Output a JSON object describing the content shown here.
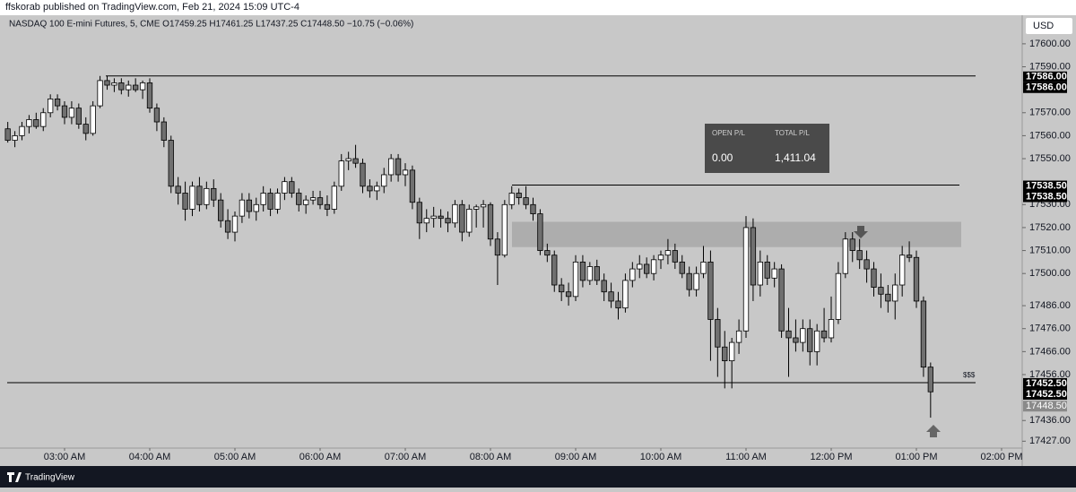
{
  "header": {
    "published": "ffskorab published on TradingView.com, Feb 21, 2024 15:09 UTC-4",
    "currency": "USD",
    "brand": "TradingView"
  },
  "chart_data": {
    "type": "candlestick",
    "title": "NASDAQ 100 E-mini Futures, 5, CME  O17459.25  H17461.25  L17437.25  C17448.50  −10.75 (−0.06%)",
    "x": [
      "02:20 AM",
      "02:25 AM",
      "02:30 AM",
      "02:35 AM",
      "02:40 AM",
      "02:45 AM",
      "02:50 AM",
      "02:55 AM",
      "03:00 AM",
      "03:05 AM",
      "03:10 AM",
      "03:15 AM",
      "03:20 AM",
      "03:25 AM",
      "03:30 AM",
      "03:35 AM",
      "03:40 AM",
      "03:45 AM",
      "03:50 AM",
      "03:55 AM",
      "04:00 AM",
      "04:05 AM",
      "04:10 AM",
      "04:15 AM",
      "04:20 AM",
      "04:25 AM",
      "04:30 AM",
      "04:35 AM",
      "04:40 AM",
      "04:45 AM",
      "04:50 AM",
      "04:55 AM",
      "05:00 AM",
      "05:05 AM",
      "05:10 AM",
      "05:15 AM",
      "05:20 AM",
      "05:25 AM",
      "05:30 AM",
      "05:35 AM",
      "05:40 AM",
      "05:45 AM",
      "05:50 AM",
      "05:55 AM",
      "06:00 AM",
      "06:05 AM",
      "06:10 AM",
      "06:15 AM",
      "06:20 AM",
      "06:25 AM",
      "06:30 AM",
      "06:35 AM",
      "06:40 AM",
      "06:45 AM",
      "06:50 AM",
      "06:55 AM",
      "07:00 AM",
      "07:05 AM",
      "07:10 AM",
      "07:15 AM",
      "07:20 AM",
      "07:25 AM",
      "07:30 AM",
      "07:35 AM",
      "07:40 AM",
      "07:45 AM",
      "07:50 AM",
      "07:55 AM",
      "08:00 AM",
      "08:05 AM",
      "08:10 AM",
      "08:15 AM",
      "08:20 AM",
      "08:25 AM",
      "08:30 AM",
      "08:35 AM",
      "08:40 AM",
      "08:45 AM",
      "08:50 AM",
      "08:55 AM",
      "09:00 AM",
      "09:05 AM",
      "09:10 AM",
      "09:15 AM",
      "09:20 AM",
      "09:25 AM",
      "09:30 AM",
      "09:35 AM",
      "09:40 AM",
      "09:45 AM",
      "09:50 AM",
      "09:55 AM",
      "10:00 AM",
      "10:05 AM",
      "10:10 AM",
      "10:15 AM",
      "10:20 AM",
      "10:25 AM",
      "10:30 AM",
      "10:35 AM",
      "10:40 AM",
      "10:45 AM",
      "10:50 AM",
      "10:55 AM",
      "11:00 AM",
      "11:05 AM",
      "11:10 AM",
      "11:15 AM",
      "11:20 AM",
      "11:25 AM",
      "11:30 AM",
      "11:35 AM",
      "11:40 AM",
      "11:45 AM",
      "11:50 AM",
      "11:55 AM",
      "12:00 PM",
      "12:05 PM",
      "12:10 PM",
      "12:15 PM",
      "12:20 PM",
      "12:25 PM",
      "12:30 PM",
      "12:35 PM",
      "12:40 PM",
      "12:45 PM",
      "12:50 PM",
      "12:55 PM",
      "01:00 PM",
      "01:05 PM",
      "01:10 PM"
    ],
    "open": [
      17563,
      17558,
      17560,
      17564,
      17567,
      17564,
      17570,
      17576,
      17573,
      17568,
      17572,
      17565,
      17561,
      17573,
      17584,
      17582,
      17583,
      17580,
      17582,
      17580,
      17583,
      17572,
      17566,
      17558,
      17538,
      17535,
      17528,
      17538,
      17530,
      17537,
      17532,
      17523,
      17518,
      17525,
      17532,
      17527,
      17530,
      17535,
      17528,
      17535,
      17540,
      17535,
      17530,
      17532,
      17533,
      17530,
      17528,
      17538,
      17549,
      17550,
      17548,
      17538,
      17536,
      17538,
      17543,
      17550,
      17543,
      17545,
      17531,
      17522,
      17524,
      17525,
      17524,
      17522,
      17530,
      17518,
      17528,
      17529,
      17530,
      17515,
      17508,
      17530,
      17535,
      17533,
      17530,
      17526,
      17510,
      17508,
      17495,
      17492,
      17490,
      17505,
      17497,
      17503,
      17497,
      17492,
      17488,
      17485,
      17497,
      17502,
      17504,
      17500,
      17506,
      17508,
      17510,
      17505,
      17500,
      17493,
      17500,
      17505,
      17480,
      17468,
      17462,
      17470,
      17475,
      17520,
      17495,
      17505,
      17498,
      17502,
      17475,
      17472,
      17470,
      17476,
      17466,
      17475,
      17472,
      17480,
      17500,
      17515,
      17510,
      17506,
      17502,
      17494,
      17491,
      17488,
      17495,
      17508,
      17507,
      17488,
      17459.25
    ],
    "high": [
      17566,
      17562,
      17566,
      17569,
      17570,
      17572,
      17578,
      17578,
      17575,
      17575,
      17574,
      17568,
      17575,
      17586,
      17586,
      17585,
      17585,
      17584,
      17585,
      17584,
      17585,
      17574,
      17568,
      17560,
      17542,
      17540,
      17540,
      17542,
      17540,
      17541,
      17535,
      17528,
      17527,
      17535,
      17535,
      17533,
      17538,
      17537,
      17537,
      17542,
      17542,
      17537,
      17534,
      17536,
      17536,
      17534,
      17540,
      17552,
      17553,
      17556,
      17550,
      17541,
      17540,
      17546,
      17552,
      17552,
      17548,
      17547,
      17533,
      17528,
      17529,
      17528,
      17527,
      17532,
      17532,
      17530,
      17530,
      17532,
      17531,
      17518,
      17532,
      17538,
      17537,
      17538,
      17533,
      17528,
      17513,
      17510,
      17498,
      17496,
      17508,
      17508,
      17505,
      17506,
      17500,
      17496,
      17492,
      17500,
      17505,
      17508,
      17507,
      17508,
      17510,
      17515,
      17513,
      17508,
      17503,
      17503,
      17512,
      17510,
      17485,
      17475,
      17472,
      17480,
      17525,
      17524,
      17510,
      17508,
      17505,
      17504,
      17485,
      17480,
      17480,
      17480,
      17478,
      17485,
      17490,
      17505,
      17518,
      17518,
      17515,
      17510,
      17505,
      17500,
      17495,
      17500,
      17512,
      17514,
      17510,
      17490,
      17461.25
    ],
    "low": [
      17557,
      17555,
      17558,
      17561,
      17563,
      17562,
      17568,
      17571,
      17565,
      17565,
      17563,
      17558,
      17560,
      17572,
      17580,
      17579,
      17578,
      17577,
      17579,
      17576,
      17570,
      17562,
      17555,
      17535,
      17530,
      17523,
      17525,
      17527,
      17528,
      17529,
      17520,
      17515,
      17514,
      17522,
      17524,
      17523,
      17527,
      17525,
      17526,
      17532,
      17533,
      17527,
      17526,
      17530,
      17528,
      17525,
      17526,
      17536,
      17545,
      17546,
      17535,
      17533,
      17532,
      17535,
      17540,
      17540,
      17538,
      17528,
      17515,
      17518,
      17520,
      17520,
      17518,
      17520,
      17514,
      17516,
      17520,
      17520,
      17512,
      17495,
      17507,
      17528,
      17530,
      17528,
      17523,
      17508,
      17505,
      17492,
      17488,
      17486,
      17488,
      17494,
      17495,
      17495,
      17488,
      17485,
      17480,
      17483,
      17494,
      17498,
      17498,
      17497,
      17502,
      17504,
      17502,
      17498,
      17490,
      17490,
      17498,
      17462,
      17455,
      17450,
      17450,
      17465,
      17472,
      17488,
      17490,
      17495,
      17494,
      17472,
      17455,
      17466,
      17466,
      17460,
      17460,
      17470,
      17470,
      17478,
      17498,
      17505,
      17502,
      17496,
      17490,
      17485,
      17483,
      17480,
      17490,
      17505,
      17485,
      17455,
      17437.25
    ],
    "close": [
      17558,
      17560,
      17564,
      17567,
      17564,
      17570,
      17576,
      17573,
      17568,
      17572,
      17565,
      17561,
      17573,
      17584,
      17582,
      17583,
      17580,
      17582,
      17580,
      17583,
      17572,
      17566,
      17558,
      17538,
      17535,
      17528,
      17538,
      17530,
      17537,
      17532,
      17523,
      17518,
      17525,
      17532,
      17527,
      17530,
      17535,
      17528,
      17535,
      17540,
      17535,
      17530,
      17532,
      17533,
      17530,
      17528,
      17538,
      17549,
      17550,
      17548,
      17538,
      17536,
      17538,
      17543,
      17550,
      17543,
      17545,
      17531,
      17522,
      17524,
      17525,
      17524,
      17522,
      17530,
      17518,
      17528,
      17529,
      17530,
      17515,
      17508,
      17530,
      17535,
      17533,
      17530,
      17526,
      17510,
      17508,
      17495,
      17492,
      17490,
      17505,
      17497,
      17503,
      17497,
      17492,
      17488,
      17485,
      17497,
      17502,
      17504,
      17500,
      17506,
      17508,
      17510,
      17505,
      17500,
      17493,
      17500,
      17505,
      17480,
      17468,
      17462,
      17470,
      17475,
      17520,
      17495,
      17505,
      17498,
      17502,
      17475,
      17472,
      17470,
      17476,
      17466,
      17475,
      17472,
      17480,
      17500,
      17515,
      17510,
      17506,
      17502,
      17494,
      17491,
      17488,
      17495,
      17508,
      17507,
      17488,
      17459.25,
      17448.5
    ],
    "up_color": "#ffffff",
    "down_color": "#707070",
    "ylim": [
      17424,
      17614
    ],
    "yticks": [
      {
        "value": 17600,
        "label": "17600.00"
      },
      {
        "value": 17590,
        "label": "17590.00"
      },
      {
        "value": 17570,
        "label": "17570.00"
      },
      {
        "value": 17560,
        "label": "17560.00"
      },
      {
        "value": 17550,
        "label": "17550.00"
      },
      {
        "value": 17530,
        "label": "17530.00"
      },
      {
        "value": 17520,
        "label": "17520.00"
      },
      {
        "value": 17510,
        "label": "17510.00"
      },
      {
        "value": 17500,
        "label": "17500.00"
      },
      {
        "value": 17486,
        "label": "17486.00"
      },
      {
        "value": 17476,
        "label": "17476.00"
      },
      {
        "value": 17466,
        "label": "17466.00"
      },
      {
        "value": 17456,
        "label": "17456.00"
      },
      {
        "value": 17436,
        "label": "17436.00"
      },
      {
        "value": 17427,
        "label": "17427.00"
      }
    ],
    "xticks": [
      "03:00 AM",
      "04:00 AM",
      "05:00 AM",
      "06:00 AM",
      "07:00 AM",
      "08:00 AM",
      "09:00 AM",
      "10:00 AM",
      "11:00 AM",
      "12:00 PM",
      "01:00 PM",
      "02:00 PM"
    ],
    "levels": [
      {
        "value": 17586,
        "label": "17586.00"
      },
      {
        "value": 17538.5,
        "label": "17538.50"
      },
      {
        "value": 17452.5,
        "label": "17452.50"
      }
    ],
    "level_annotation": "$$$",
    "zone": [
      17511.5,
      17522.5
    ],
    "last_price": {
      "value": 17448.5,
      "label": "17448.50"
    },
    "pl_panel": {
      "open_label": "OPEN P/L",
      "open_value": "0.00",
      "total_label": "TOTAL P/L",
      "total_value": "1,411.04"
    }
  }
}
